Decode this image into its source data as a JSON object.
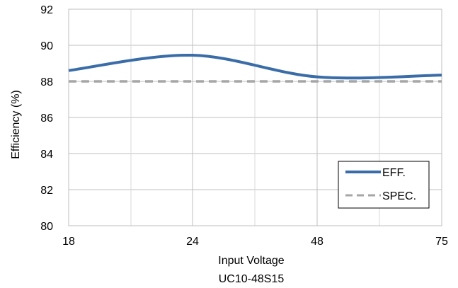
{
  "chart_data": {
    "type": "line",
    "title": "",
    "subtitle": "UC10-48S15",
    "xlabel": "Input Voltage",
    "ylabel": "Efficiency (%)",
    "x_ticks": [
      "18",
      "24",
      "48",
      "75"
    ],
    "ylim": [
      80,
      92
    ],
    "y_ticks": [
      "80",
      "82",
      "84",
      "86",
      "88",
      "90",
      "92"
    ],
    "grid": true,
    "legend_position": "bottom-right",
    "series": [
      {
        "name": "EFF.",
        "color": "#3a6da8",
        "style": "solid",
        "x": [
          "18",
          "24",
          "48",
          "75"
        ],
        "values": [
          88.6,
          89.45,
          88.25,
          88.35
        ]
      },
      {
        "name": "SPEC.",
        "color": "#a6a6a6",
        "style": "dashed",
        "x": [
          "18",
          "24",
          "48",
          "75"
        ],
        "values": [
          88.0,
          88.0,
          88.0,
          88.0
        ]
      }
    ]
  }
}
